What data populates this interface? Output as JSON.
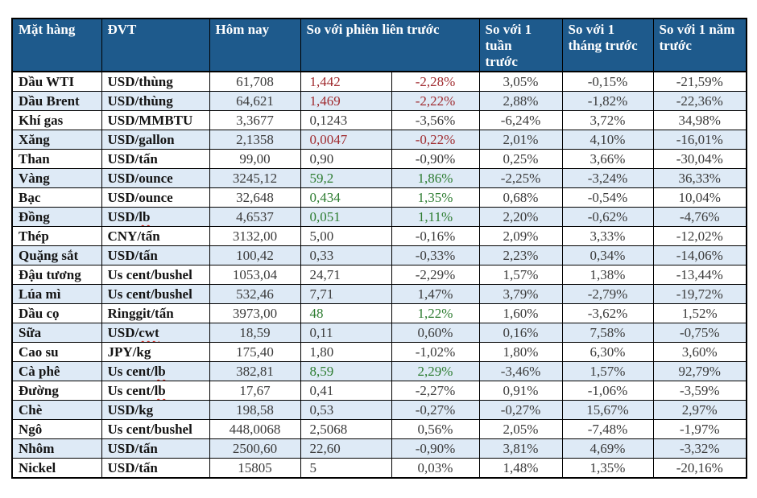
{
  "colors": {
    "header_bg": "#1e5a8c",
    "header_text": "#ffffff",
    "row_alt_bg": "#deeaf6",
    "row_bg": "#ffffff",
    "grid": "#000000",
    "number_text": "#3b3b3b",
    "label_text": "#141414",
    "negative_red": "#a02c30",
    "positive_green": "#2e7d32",
    "spellcheck_squiggle": "#d02015"
  },
  "table": {
    "headers": [
      {
        "label": "Mặt hàng"
      },
      {
        "label": "ĐVT"
      },
      {
        "label": "Hôm nay"
      },
      {
        "label": "So với phiên liên trước"
      },
      {
        "label": "So với 1 tuần trước"
      },
      {
        "label": "So với 1 tháng trước"
      },
      {
        "label": "So với 1 năm trước"
      }
    ],
    "rows": [
      {
        "name": "Dầu WTI",
        "unit": "USD/thùng",
        "unit_flagged": false,
        "today": "61,708",
        "change_abs": "1,442",
        "change_pct": "-2,28%",
        "change_color": "red",
        "week": "3,05%",
        "month": "-0,15%",
        "year": "-21,59%"
      },
      {
        "name": "Dầu Brent",
        "unit": "USD/thùng",
        "unit_flagged": false,
        "today": "64,621",
        "change_abs": "1,469",
        "change_pct": "-2,22%",
        "change_color": "red",
        "week": "2,88%",
        "month": "-1,82%",
        "year": "-22,36%"
      },
      {
        "name": "Khí gas",
        "unit": "USD/MMBTU",
        "unit_flagged": false,
        "today": "3,3677",
        "change_abs": "0,1243",
        "change_pct": "-3,56%",
        "change_color": "black",
        "week": "-6,24%",
        "month": "3,72%",
        "year": "34,98%"
      },
      {
        "name": "Xăng",
        "unit": "USD/gallon",
        "unit_flagged": false,
        "today": "2,1358",
        "change_abs": "0,0047",
        "change_pct": "-0,22%",
        "change_color": "red",
        "week": "2,01%",
        "month": "4,10%",
        "year": "-16,01%"
      },
      {
        "name": "Than",
        "unit": "USD/tấn",
        "unit_flagged": false,
        "today": "99,00",
        "change_abs": "0,90",
        "change_pct": "-0,90%",
        "change_color": "black",
        "week": "0,25%",
        "month": "3,66%",
        "year": "-30,04%"
      },
      {
        "name": "Vàng",
        "unit": "USD/ounce",
        "unit_flagged": false,
        "today": "3245,12",
        "change_abs": "59,2",
        "change_pct": "1,86%",
        "change_color": "green",
        "week": "-2,25%",
        "month": "-3,24%",
        "year": "36,33%"
      },
      {
        "name": "Bạc",
        "unit": "USD/ounce",
        "unit_flagged": false,
        "today": "32,648",
        "change_abs": "0,434",
        "change_pct": "1,35%",
        "change_color": "green",
        "week": "0,68%",
        "month": "-0,54%",
        "year": "10,04%"
      },
      {
        "name": "Đồng",
        "unit": "USD/lb",
        "unit_flagged": true,
        "today": "4,6537",
        "change_abs": "0,051",
        "change_pct": "1,11%",
        "change_color": "green",
        "week": "2,20%",
        "month": "-0,62%",
        "year": "-4,76%"
      },
      {
        "name": "Thép",
        "unit": "CNY/tấn",
        "unit_flagged": false,
        "today": "3132,00",
        "change_abs": "5,00",
        "change_pct": "-0,16%",
        "change_color": "black",
        "week": "2,09%",
        "month": "3,33%",
        "year": "-12,02%"
      },
      {
        "name": "Quặng sắt",
        "unit": "USD/tấn",
        "unit_flagged": false,
        "today": "100,42",
        "change_abs": "0,33",
        "change_pct": "-0,33%",
        "change_color": "black",
        "week": "2,23%",
        "month": "0,34%",
        "year": "-14,06%"
      },
      {
        "name": "Đậu tương",
        "unit": "Us cent/bushel",
        "unit_flagged": false,
        "today": "1053,04",
        "change_abs": "24,71",
        "change_pct": "-2,29%",
        "change_color": "black",
        "week": "1,57%",
        "month": "1,38%",
        "year": "-13,44%"
      },
      {
        "name": "Lúa mì",
        "unit": "Us cent/bushel",
        "unit_flagged": false,
        "today": "532,46",
        "change_abs": "7,71",
        "change_pct": "1,47%",
        "change_color": "black",
        "week": "3,79%",
        "month": "-2,79%",
        "year": "-19,72%"
      },
      {
        "name": "Dầu cọ",
        "unit": "Ringgit/tấn",
        "unit_flagged": false,
        "today": "3973,00",
        "change_abs": "48",
        "change_pct": "1,22%",
        "change_color": "green",
        "week": "1,60%",
        "month": "-3,62%",
        "year": "1,52%"
      },
      {
        "name": "Sữa",
        "unit": "USD/cwt",
        "unit_flagged": true,
        "today": "18,59",
        "change_abs": "0,11",
        "change_pct": "0,60%",
        "change_color": "black",
        "week": "0,16%",
        "month": "7,58%",
        "year": "-0,75%"
      },
      {
        "name": "Cao su",
        "unit": "JPY/kg",
        "unit_flagged": false,
        "today": "175,40",
        "change_abs": "1,80",
        "change_pct": "-1,02%",
        "change_color": "black",
        "week": "1,80%",
        "month": "6,30%",
        "year": "3,60%"
      },
      {
        "name": "Cà phê",
        "unit": "Us cent/lb",
        "unit_flagged": true,
        "today": "382,81",
        "change_abs": "8,59",
        "change_pct": "2,29%",
        "change_color": "green",
        "week": "-3,46%",
        "month": "1,57%",
        "year": "92,79%"
      },
      {
        "name": "Đường",
        "unit": "Us cent/lb",
        "unit_flagged": true,
        "today": "17,67",
        "change_abs": "0,41",
        "change_pct": "-2,27%",
        "change_color": "black",
        "week": "0,91%",
        "month": "-1,06%",
        "year": "-3,59%"
      },
      {
        "name": "Chè",
        "unit": "USD/kg",
        "unit_flagged": false,
        "today": "198,58",
        "change_abs": "0,53",
        "change_pct": "-0,27%",
        "change_color": "black",
        "week": "-0,27%",
        "month": "15,67%",
        "year": "2,97%"
      },
      {
        "name": "Ngô",
        "unit": "Us cent/bushel",
        "unit_flagged": false,
        "today": "448,0068",
        "change_abs": "2,5068",
        "change_pct": "0,56%",
        "change_color": "black",
        "week": "2,05%",
        "month": "-7,48%",
        "year": "-1,97%"
      },
      {
        "name": "Nhôm",
        "unit": "USD/tấn",
        "unit_flagged": false,
        "today": "2500,60",
        "change_abs": "22,60",
        "change_pct": "-0,90%",
        "change_color": "black",
        "week": "3,81%",
        "month": "4,69%",
        "year": "-3,32%"
      },
      {
        "name": "Nickel",
        "unit": "USD/tấn",
        "unit_flagged": false,
        "today": "15805",
        "change_abs": "5",
        "change_pct": "0,03%",
        "change_color": "black",
        "week": "1,48%",
        "month": "1,35%",
        "year": "-20,16%"
      }
    ]
  }
}
